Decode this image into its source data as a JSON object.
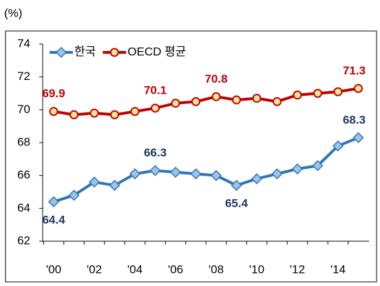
{
  "chart_data": {
    "type": "line",
    "y_axis_label": "(%)",
    "categories": [
      "'00",
      null,
      "'02",
      null,
      "'04",
      null,
      "'06",
      null,
      "'08",
      null,
      "'10",
      null,
      "'12",
      null,
      "'14",
      null
    ],
    "series": [
      {
        "name": "한국",
        "color": "#2e75b6",
        "marker_fill": "#9dc3e6",
        "label_color": "#1f3864",
        "marker": "diamond",
        "values": [
          64.4,
          64.8,
          65.6,
          65.4,
          66.1,
          66.3,
          66.2,
          66.1,
          66.0,
          65.4,
          65.8,
          66.1,
          66.4,
          66.6,
          67.8,
          68.3
        ],
        "value_labels": [
          "64.4",
          null,
          null,
          null,
          null,
          "66.3",
          null,
          null,
          null,
          "65.4",
          null,
          null,
          null,
          null,
          null,
          "68.3"
        ]
      },
      {
        "name": "OECD 평균",
        "color": "#c00000",
        "marker_fill": "#ffe699",
        "label_color": "#c00000",
        "marker": "circle",
        "values": [
          69.9,
          69.7,
          69.8,
          69.7,
          69.9,
          70.1,
          70.4,
          70.5,
          70.8,
          70.6,
          70.7,
          70.5,
          70.9,
          71.0,
          71.1,
          71.3
        ],
        "value_labels": [
          "69.9",
          null,
          null,
          null,
          null,
          "70.1",
          null,
          null,
          "70.8",
          null,
          null,
          null,
          null,
          null,
          null,
          "71.3"
        ]
      }
    ],
    "ylim": [
      62,
      74
    ],
    "yticks": [
      62,
      64,
      66,
      68,
      70,
      72,
      74
    ],
    "grid": false,
    "legend": "top-left"
  }
}
